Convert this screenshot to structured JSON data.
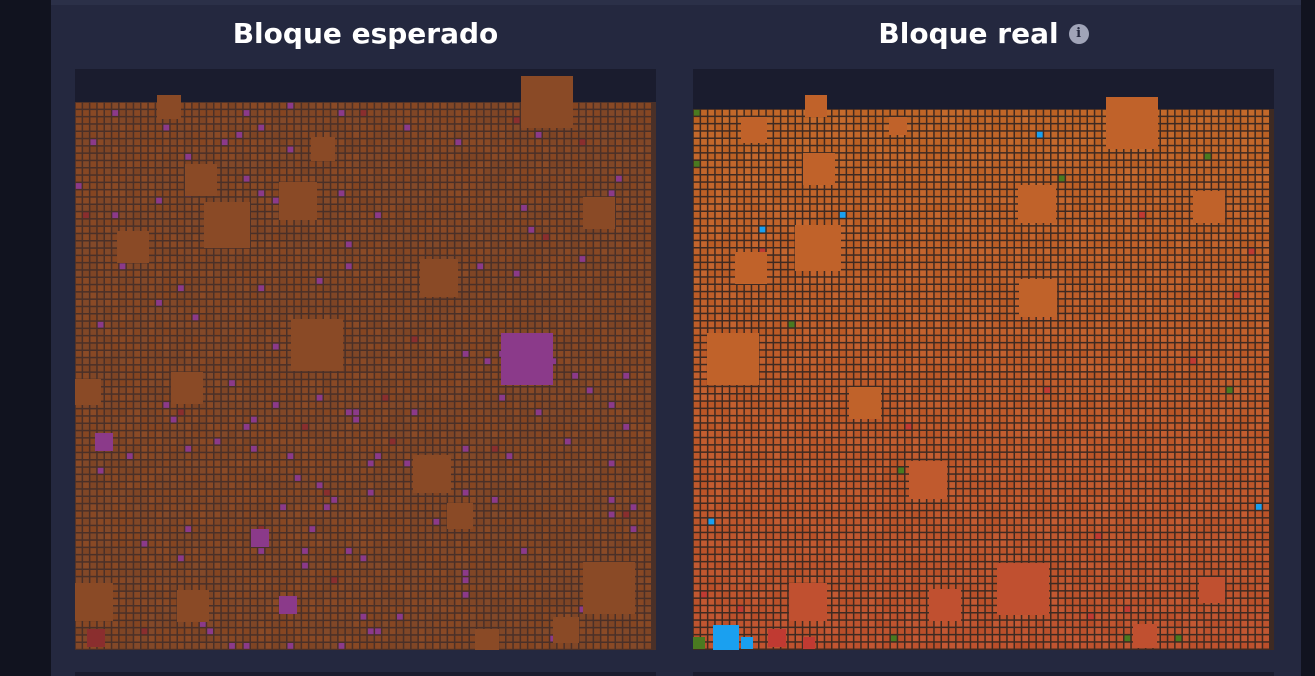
{
  "left_block": {
    "title": "Bloque esperado",
    "colors": {
      "base": "#8a4a26",
      "alt": "#7e4424",
      "purple": "#8b3a8a",
      "red": "#8a2e2e"
    }
  },
  "right_block": {
    "title": "Bloque real",
    "info_icon": "info-icon",
    "colors": {
      "base": "#c0622a",
      "alt": "#b8552e",
      "blue": "#1aa0f0",
      "green": "#4a7a20",
      "red": "#c03a32",
      "grey": "#4a4038"
    }
  }
}
